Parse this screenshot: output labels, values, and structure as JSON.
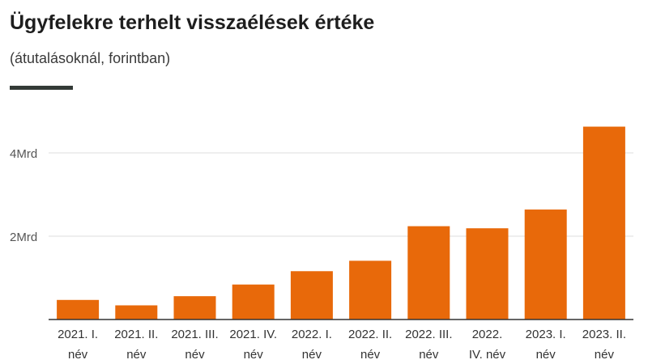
{
  "header": {
    "title": "Ügyfelekre terhelt visszaélések értéke",
    "subtitle": "(átutalásoknál, forintban)"
  },
  "colors": {
    "bar": "#e8690a",
    "grid": "#dedede",
    "axis": "#333333",
    "accent": "#333a36"
  },
  "chart_data": {
    "type": "bar",
    "title": "Ügyfelekre terhelt visszaélések értéke",
    "subtitle": "(átutalásoknál, forintban)",
    "xlabel": "",
    "ylabel": "",
    "categories": [
      [
        "2021. I.",
        "név"
      ],
      [
        "2021. II.",
        "név"
      ],
      [
        "2021. III.",
        "név"
      ],
      [
        "2021. IV.",
        "név"
      ],
      [
        "2022. I.",
        "név"
      ],
      [
        "2022. II.",
        "név"
      ],
      [
        "2022. III.",
        "név"
      ],
      [
        "2022.",
        "IV. név"
      ],
      [
        "2023. I.",
        "név"
      ],
      [
        "2023. II.",
        "név"
      ]
    ],
    "values": [
      0.47,
      0.34,
      0.56,
      0.84,
      1.16,
      1.41,
      2.24,
      2.19,
      2.64,
      4.63
    ],
    "unit": "Mrd",
    "ylim": [
      0,
      4.8
    ],
    "yticks": [
      {
        "value": 2,
        "label": "2Mrd"
      },
      {
        "value": 4,
        "label": "4Mrd"
      }
    ],
    "grid": true,
    "legend": "none"
  }
}
